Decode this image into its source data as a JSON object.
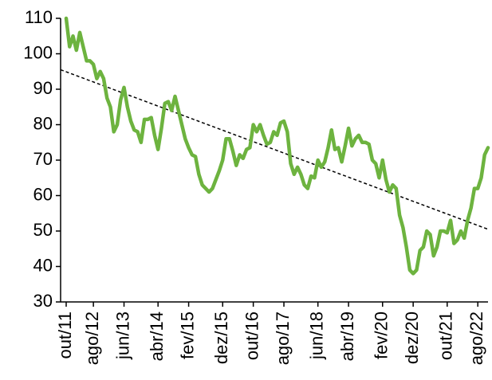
{
  "chart_data": {
    "type": "line",
    "categories": [
      "out/11",
      null,
      null,
      null,
      null,
      null,
      null,
      null,
      "ago/12",
      null,
      null,
      null,
      null,
      null,
      null,
      null,
      null,
      "jun/13",
      null,
      null,
      null,
      null,
      null,
      null,
      null,
      null,
      null,
      "abr/14",
      null,
      null,
      null,
      null,
      null,
      null,
      null,
      null,
      "fev/15",
      null,
      null,
      null,
      null,
      null,
      null,
      null,
      null,
      null,
      "dez/15",
      null,
      null,
      null,
      null,
      null,
      null,
      null,
      null,
      "out/16",
      null,
      null,
      null,
      null,
      null,
      null,
      null,
      null,
      "ago/17",
      null,
      null,
      null,
      null,
      null,
      null,
      null,
      null,
      null,
      "jun/18",
      null,
      null,
      null,
      null,
      null,
      null,
      null,
      null,
      "abr/19",
      null,
      null,
      null,
      null,
      null,
      null,
      null,
      null,
      null,
      "fev/20",
      null,
      null,
      null,
      null,
      null,
      null,
      null,
      null,
      "dez/20",
      null,
      null,
      null,
      null,
      null,
      null,
      null,
      null,
      null,
      "out/21",
      null,
      null,
      null,
      null,
      null,
      null,
      null,
      null,
      "ago/22",
      null,
      null,
      null
    ],
    "series": [
      {
        "color": "#6db33f",
        "values": [
          110,
          102,
          105,
          101,
          106,
          102,
          98,
          98,
          97,
          93,
          95,
          93,
          87.5,
          85,
          78,
          80,
          87,
          90.5,
          85,
          81,
          78.5,
          78,
          75,
          81.5,
          81.5,
          82,
          77,
          73,
          79,
          86,
          86.5,
          84,
          88,
          84,
          80,
          76,
          73.5,
          71.5,
          71,
          66,
          63,
          62,
          61,
          62,
          64.5,
          67,
          70,
          76,
          76,
          72.5,
          68.5,
          71.5,
          70.5,
          73,
          73.5,
          80,
          78,
          80,
          77,
          74.5,
          75,
          78,
          77,
          80.5,
          81,
          78,
          69,
          66,
          68,
          66,
          63,
          62,
          65.5,
          65,
          70,
          68,
          69.5,
          73.5,
          78.5,
          73,
          73.5,
          69.5,
          74,
          79,
          74,
          76,
          77,
          75,
          75,
          74.5,
          70,
          69,
          65,
          70,
          64.5,
          61,
          63,
          62,
          54.5,
          51,
          45.5,
          39,
          38,
          39,
          44.5,
          45.5,
          50,
          49,
          43,
          45.5,
          50,
          50,
          49.5,
          53,
          46.5,
          47.5,
          50,
          48,
          53,
          56.5,
          62,
          62,
          65,
          71.5,
          73.5
        ]
      }
    ],
    "trendline": {
      "values": [
        95.5,
        50.5
      ],
      "color": "#000000",
      "dashed": true
    },
    "ylim": [
      30,
      110
    ],
    "yticks": [
      30,
      40,
      50,
      60,
      70,
      80,
      90,
      100,
      110
    ],
    "grid": false
  }
}
